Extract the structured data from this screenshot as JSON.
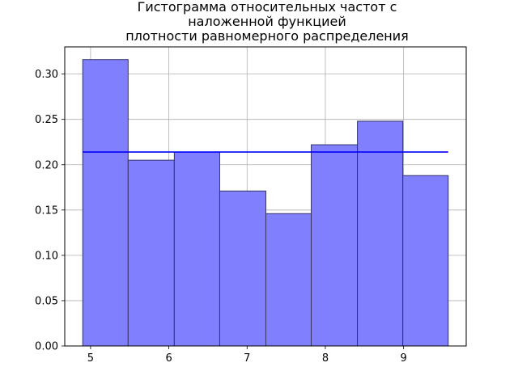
{
  "chart_data": {
    "type": "bar",
    "title_lines": [
      "Гистограмма относительных частот с",
      "наложенной функцией",
      "плотности равномерного распределения"
    ],
    "xlabel": "",
    "ylabel": "",
    "bins": [
      {
        "x0": 4.9,
        "x1": 5.48,
        "value": 0.316
      },
      {
        "x0": 5.48,
        "x1": 6.07,
        "value": 0.205
      },
      {
        "x0": 6.07,
        "x1": 6.65,
        "value": 0.214
      },
      {
        "x0": 6.65,
        "x1": 7.24,
        "value": 0.171
      },
      {
        "x0": 7.24,
        "x1": 7.82,
        "value": 0.146
      },
      {
        "x0": 7.82,
        "x1": 8.41,
        "value": 0.222
      },
      {
        "x0": 8.41,
        "x1": 8.99,
        "value": 0.248
      },
      {
        "x0": 8.99,
        "x1": 9.57,
        "value": 0.188
      }
    ],
    "density_line": {
      "x": [
        4.9,
        9.57
      ],
      "y": 0.214
    },
    "xlim": [
      4.67,
      9.8
    ],
    "ylim": [
      0,
      0.33
    ],
    "xticks": [
      5,
      6,
      7,
      8,
      9
    ],
    "yticks": [
      0.0,
      0.05,
      0.1,
      0.15,
      0.2,
      0.25,
      0.3
    ],
    "ytick_labels": [
      "0.00",
      "0.05",
      "0.10",
      "0.15",
      "0.20",
      "0.25",
      "0.30"
    ],
    "grid": true,
    "colors": {
      "bar_fill": "#8080ff",
      "bar_edge": "#333366",
      "line": "#0000ff",
      "grid": "#b0b0b0"
    }
  }
}
